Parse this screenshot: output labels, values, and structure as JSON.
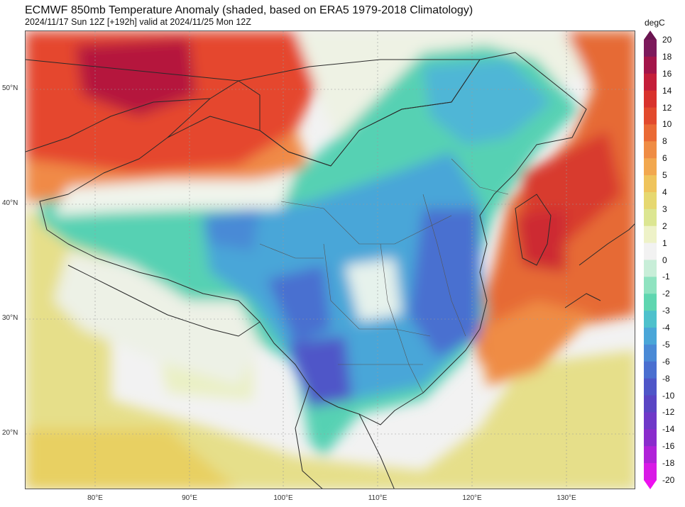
{
  "header": {
    "title": "ECMWF 850mb Temperature Anomaly (shaded, based on ERA5 1979-2018 Climatology)",
    "subtitle": "2024/11/17 Sun 12Z [+192h] valid at 2024/11/25 Mon 12Z"
  },
  "map": {
    "lat_labels": [
      "50°N",
      "40°N",
      "30°N",
      "20°N"
    ],
    "lon_labels": [
      "80°E",
      "90°E",
      "100°E",
      "110°E",
      "120°E",
      "130°E"
    ]
  },
  "colorbar": {
    "unit": "degC",
    "levels": [
      "20",
      "18",
      "16",
      "14",
      "12",
      "10",
      "8",
      "6",
      "5",
      "4",
      "3",
      "2",
      "1",
      "0",
      "-1",
      "-2",
      "-3",
      "-4",
      "-5",
      "-6",
      "-8",
      "-10",
      "-12",
      "-14",
      "-16",
      "-18",
      "-20"
    ],
    "colors": [
      "#7d1a5c",
      "#a3154a",
      "#c41e3a",
      "#d8322d",
      "#e24a2d",
      "#ea6a35",
      "#ef8c44",
      "#f2a84f",
      "#efc45c",
      "#e6d870",
      "#dce692",
      "#eef2c8",
      "#f2f2f2",
      "#c8eed8",
      "#8fe3c0",
      "#5fd6b0",
      "#4ec1cc",
      "#4aa6d8",
      "#4a8ad6",
      "#4a6fd0",
      "#4f56c8",
      "#5a45c4",
      "#6f38c8",
      "#8a2ccc",
      "#b022d8",
      "#d81ae6"
    ],
    "extend_top": "#6a1450",
    "extend_bottom": "#ee10f0"
  }
}
